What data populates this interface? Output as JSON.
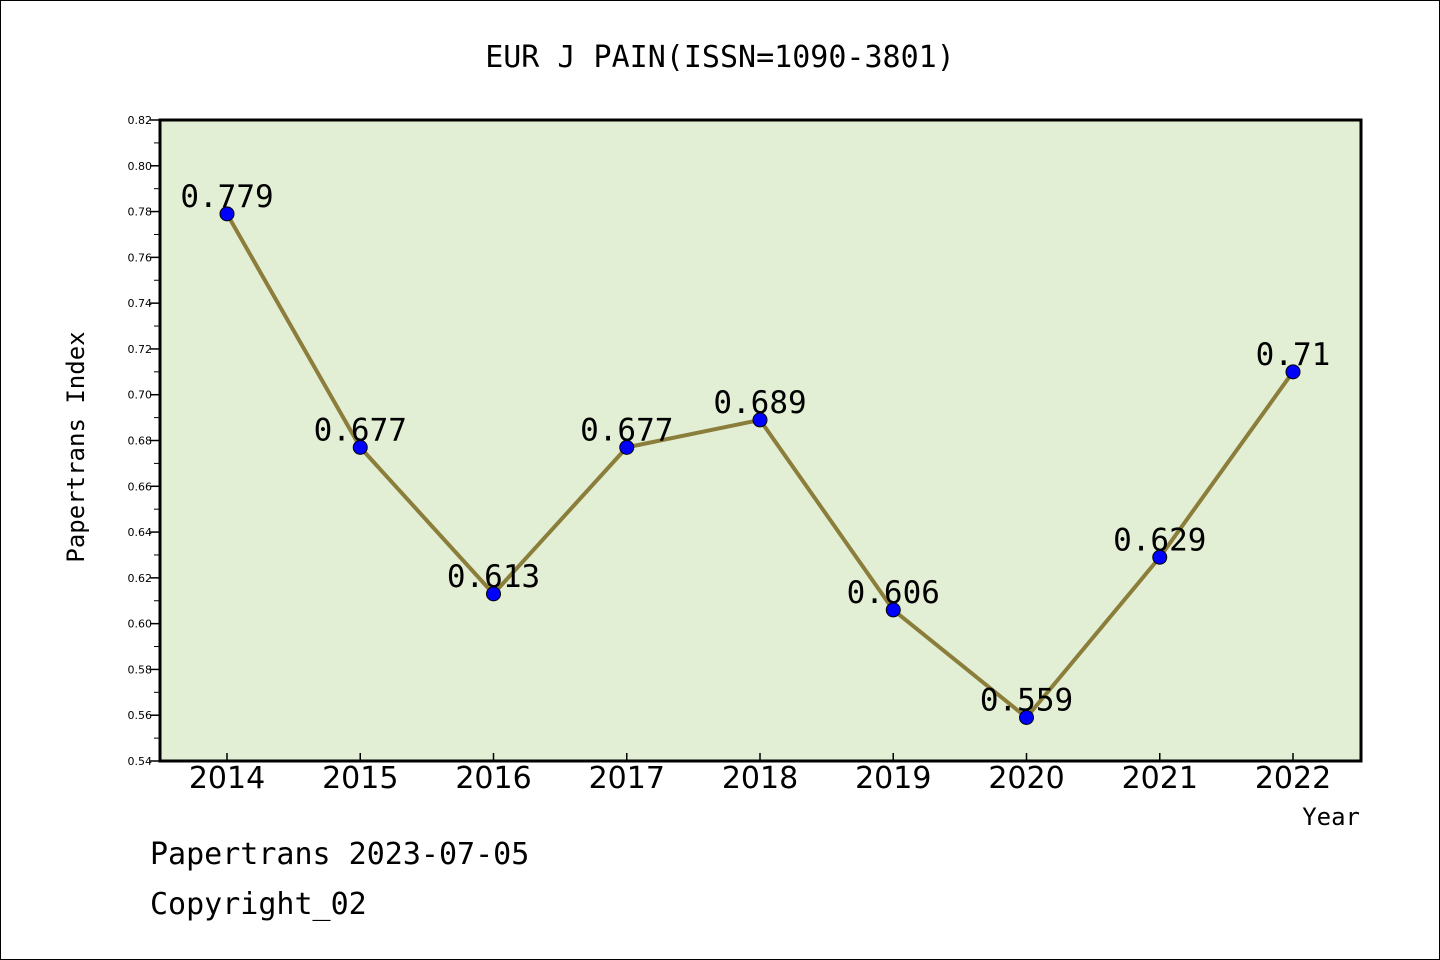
{
  "chart_data": {
    "type": "line",
    "title": "EUR J PAIN(ISSN=1090-3801)",
    "xlabel": "Year",
    "ylabel": "Papertrans Index",
    "categories": [
      "2014",
      "2015",
      "2016",
      "2017",
      "2018",
      "2019",
      "2020",
      "2021",
      "2022"
    ],
    "values": [
      0.779,
      0.677,
      0.613,
      0.677,
      0.689,
      0.606,
      0.559,
      0.629,
      0.71
    ],
    "data_labels": [
      "0.779",
      "0.677",
      "0.613",
      "0.677",
      "0.689",
      "0.606",
      "0.559",
      "0.629",
      "0.71"
    ],
    "ylim": [
      0.54,
      0.82
    ],
    "yticks": [
      "0.54",
      "0.56",
      "0.58",
      "0.60",
      "0.62",
      "0.64",
      "0.66",
      "0.68",
      "0.70",
      "0.72",
      "0.74",
      "0.76",
      "0.78",
      "0.80",
      "0.82"
    ],
    "grid": false,
    "legend": "none",
    "colors": {
      "plot_background": "#e2efd5",
      "line": "#8b7d3a",
      "marker": "#0000ff"
    }
  },
  "footer": {
    "date_line": "Papertrans 2023-07-05",
    "copyright": "Copyright_02"
  }
}
